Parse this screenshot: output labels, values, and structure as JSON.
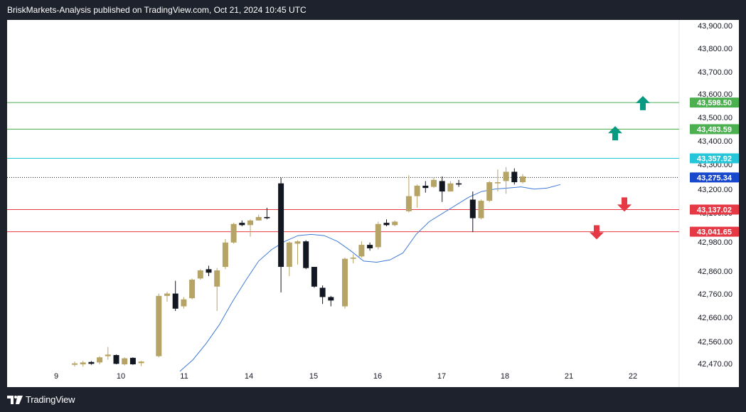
{
  "header": {
    "attribution": "BriskMarkets-Analysis published on TradingView.com, Oct 21, 2024 10:45 UTC"
  },
  "footer": {
    "brand": "TradingView",
    "logo_icon": "tradingview-logo-icon"
  },
  "colors": {
    "background": "#1e222d",
    "chart_bg": "#ffffff",
    "bull": "#b5a465",
    "bear": "#131722",
    "ma": "#3f7bd9",
    "resistance": "#4caf50",
    "pivot": "#26c6da",
    "current": "#1848cc",
    "support": "#e53945",
    "up_arrow": "#089981",
    "down_arrow": "#e53945"
  },
  "chart_data": {
    "type": "candlestick",
    "y_axis": {
      "ylim": [
        42470,
        43930
      ],
      "ticks": [
        "43,900.00",
        "43,800.00",
        "43,700.00",
        "43,600.00",
        "43,500.00",
        "43,400.00",
        "43,300.00",
        "43,200.00",
        "43,100.00",
        "42,980.00",
        "42,860.00",
        "42,760.00",
        "42,660.00",
        "42,560.00",
        "42,470.00"
      ]
    },
    "x_axis": {
      "labels": [
        "9",
        "10",
        "11",
        "14",
        "15",
        "16",
        "17",
        "18",
        "21",
        "22"
      ]
    },
    "levels": [
      {
        "value": 43598.5,
        "label": "43,598.50",
        "kind": "resistance"
      },
      {
        "value": 43483.59,
        "label": "43,483.59",
        "kind": "resistance"
      },
      {
        "value": 43357.92,
        "label": "43,357.92",
        "kind": "pivot"
      },
      {
        "value": 43275.34,
        "label": "43,275.34",
        "kind": "current"
      },
      {
        "value": 43137.02,
        "label": "43,137.02",
        "kind": "support"
      },
      {
        "value": 43041.65,
        "label": "43,041.65",
        "kind": "support"
      }
    ],
    "arrows": [
      {
        "direction": "up",
        "level": 43590
      },
      {
        "direction": "up",
        "level": 43460
      },
      {
        "direction": "down",
        "level": 43165
      },
      {
        "direction": "down",
        "level": 43045
      }
    ],
    "candles": [
      {
        "o": 42468,
        "h": 42482,
        "l": 42460,
        "c": 42474
      },
      {
        "o": 42470,
        "h": 42485,
        "l": 42460,
        "c": 42478
      },
      {
        "o": 42480,
        "h": 42484,
        "l": 42468,
        "c": 42472
      },
      {
        "o": 42478,
        "h": 42505,
        "l": 42470,
        "c": 42500
      },
      {
        "o": 42505,
        "h": 42545,
        "l": 42490,
        "c": 42512
      },
      {
        "o": 42510,
        "h": 42512,
        "l": 42470,
        "c": 42472
      },
      {
        "o": 42470,
        "h": 42500,
        "l": 42465,
        "c": 42496
      },
      {
        "o": 42498,
        "h": 42500,
        "l": 42468,
        "c": 42470
      },
      {
        "o": 42475,
        "h": 42485,
        "l": 42462,
        "c": 42482
      },
      {
        "o": 42505,
        "h": 42775,
        "l": 42500,
        "c": 42765
      },
      {
        "o": 42765,
        "h": 42783,
        "l": 42740,
        "c": 42775
      },
      {
        "o": 42775,
        "h": 42830,
        "l": 42700,
        "c": 42710
      },
      {
        "o": 42720,
        "h": 42760,
        "l": 42710,
        "c": 42750
      },
      {
        "o": 42755,
        "h": 42840,
        "l": 42750,
        "c": 42835
      },
      {
        "o": 42840,
        "h": 42880,
        "l": 42835,
        "c": 42875
      },
      {
        "o": 42880,
        "h": 42895,
        "l": 42850,
        "c": 42865
      },
      {
        "o": 42805,
        "h": 42885,
        "l": 42700,
        "c": 42875
      },
      {
        "o": 42890,
        "h": 43010,
        "l": 42880,
        "c": 42995
      },
      {
        "o": 42995,
        "h": 43080,
        "l": 42990,
        "c": 43075
      },
      {
        "o": 43080,
        "h": 43090,
        "l": 43065,
        "c": 43070
      },
      {
        "o": 43070,
        "h": 43095,
        "l": 43020,
        "c": 43090
      },
      {
        "o": 43090,
        "h": 43115,
        "l": 43090,
        "c": 43105
      },
      {
        "o": 43105,
        "h": 43145,
        "l": 43095,
        "c": 43100
      },
      {
        "o": 43250,
        "h": 43275,
        "l": 42780,
        "c": 42890
      },
      {
        "o": 42890,
        "h": 43000,
        "l": 42850,
        "c": 42995
      },
      {
        "o": 42990,
        "h": 43005,
        "l": 42900,
        "c": 43000
      },
      {
        "o": 43000,
        "h": 43005,
        "l": 42880,
        "c": 42885
      },
      {
        "o": 42890,
        "h": 42890,
        "l": 42800,
        "c": 42805
      },
      {
        "o": 42800,
        "h": 42810,
        "l": 42730,
        "c": 42760
      },
      {
        "o": 42760,
        "h": 42765,
        "l": 42720,
        "c": 42745
      },
      {
        "o": 42720,
        "h": 42930,
        "l": 42710,
        "c": 42925
      },
      {
        "o": 42925,
        "h": 42945,
        "l": 42905,
        "c": 42930
      },
      {
        "o": 42935,
        "h": 43000,
        "l": 42930,
        "c": 42985
      },
      {
        "o": 42985,
        "h": 42995,
        "l": 42960,
        "c": 42970
      },
      {
        "o": 42975,
        "h": 43085,
        "l": 42965,
        "c": 43075
      },
      {
        "o": 43080,
        "h": 43095,
        "l": 43065,
        "c": 43070
      },
      {
        "o": 43070,
        "h": 43090,
        "l": 43065,
        "c": 43085
      },
      {
        "o": 43130,
        "h": 43285,
        "l": 43125,
        "c": 43195
      },
      {
        "o": 43195,
        "h": 43245,
        "l": 43145,
        "c": 43240
      },
      {
        "o": 43240,
        "h": 43260,
        "l": 43210,
        "c": 43230
      },
      {
        "o": 43235,
        "h": 43275,
        "l": 43230,
        "c": 43265
      },
      {
        "o": 43260,
        "h": 43280,
        "l": 43170,
        "c": 43215
      },
      {
        "o": 43215,
        "h": 43260,
        "l": 43215,
        "c": 43250
      },
      {
        "o": 43250,
        "h": 43265,
        "l": 43235,
        "c": 43245
      },
      {
        "o": 43180,
        "h": 43215,
        "l": 43040,
        "c": 43100
      },
      {
        "o": 43100,
        "h": 43180,
        "l": 43095,
        "c": 43175
      },
      {
        "o": 43175,
        "h": 43260,
        "l": 43170,
        "c": 43255
      },
      {
        "o": 43250,
        "h": 43310,
        "l": 43215,
        "c": 43255
      },
      {
        "o": 43260,
        "h": 43320,
        "l": 43205,
        "c": 43300
      },
      {
        "o": 43300,
        "h": 43315,
        "l": 43245,
        "c": 43255
      },
      {
        "o": 43255,
        "h": 43290,
        "l": 43250,
        "c": 43280
      }
    ],
    "ma": [
      42440,
      42490,
      42560,
      42640,
      42740,
      42830,
      42915,
      42965,
      43000,
      43025,
      43030,
      43025,
      43000,
      42960,
      42915,
      42910,
      42920,
      42950,
      43030,
      43085,
      43120,
      43155,
      43190,
      43215,
      43225,
      43230,
      43235,
      43225,
      43230,
      43245
    ]
  }
}
